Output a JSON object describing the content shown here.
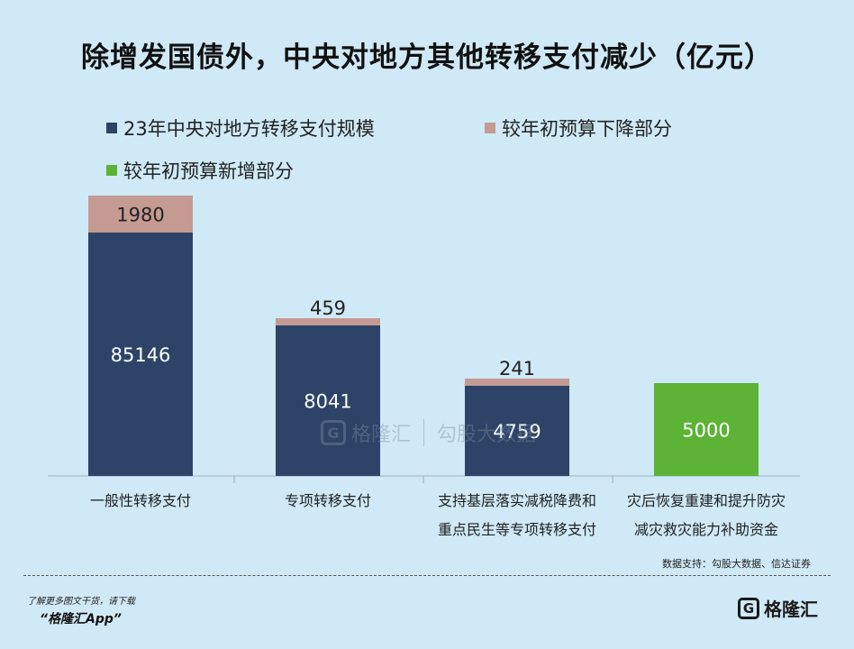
{
  "chart_data": {
    "type": "bar",
    "title": "除增发国债外，中央对地方其他转移支付减少（亿元）",
    "categories": [
      [
        "一般性转移支付"
      ],
      [
        "专项转移支付"
      ],
      [
        "支持基层落实减税降费和",
        "重点民生等专项转移支付"
      ],
      [
        "灾后恢复重建和提升防灾",
        "减灾救灾能力补助资金"
      ]
    ],
    "series": [
      {
        "name": "23年中央对地方转移支付规模",
        "color": "#2d4468",
        "values": [
          85146,
          8041,
          4759,
          null
        ]
      },
      {
        "name": "较年初预算下降部分",
        "color": "#c49a93",
        "values": [
          1980,
          459,
          241,
          null
        ]
      },
      {
        "name": "较年初预算新增部分",
        "color": "#5cb335",
        "values": [
          null,
          null,
          null,
          5000
        ]
      }
    ],
    "stacked": true,
    "grid": false
  },
  "source_text": "数据支持：勾股大数据、信达证券",
  "footer": {
    "line1": "了解更多图文干货，请下载",
    "line2": "“格隆汇App”"
  },
  "brand": {
    "icon": "G",
    "name": "格隆汇"
  },
  "watermark": {
    "icon": "G",
    "name1": "格隆汇",
    "name2": "勾股大数据"
  }
}
